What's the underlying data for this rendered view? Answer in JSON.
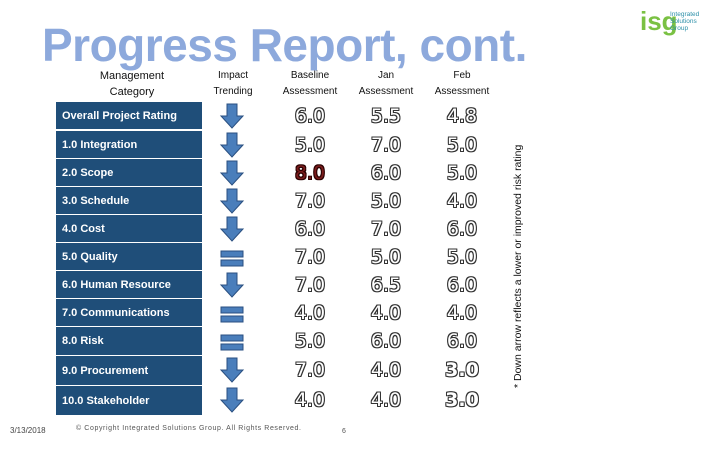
{
  "title": "Progress Report, cont.",
  "logo": {
    "mark": "isg",
    "lines": [
      "Integrated",
      "Solutions",
      "Group"
    ],
    "mark_color": "#7ac143",
    "text_color": "#2b8fa8"
  },
  "columns": {
    "management": "Management Category",
    "trending": "Impact Trending",
    "baseline": "Baseline Assessment",
    "jan": "Jan Assessment",
    "feb": "Feb Assessment"
  },
  "rows": [
    {
      "label": "Overall Project Rating",
      "trend": "down-arrow",
      "baseline": "6.0",
      "jan": "5.5",
      "feb": "4.8"
    },
    {
      "label": "1.0 Integration",
      "trend": "down-arrow",
      "baseline": "5.0",
      "jan": "7.0",
      "feb": "5.0"
    },
    {
      "label": "2.0 Scope",
      "trend": "down-arrow",
      "baseline": "8.0",
      "jan": "6.0",
      "feb": "5.0",
      "baseline_highlight": true
    },
    {
      "label": "3.0 Schedule",
      "trend": "down-arrow",
      "baseline": "7.0",
      "jan": "5.0",
      "feb": "4.0"
    },
    {
      "label": "4.0 Cost",
      "trend": "down-arrow",
      "baseline": "6.0",
      "jan": "7.0",
      "feb": "6.0"
    },
    {
      "label": "5.0 Quality",
      "trend": "equal-bars",
      "baseline": "7.0",
      "jan": "5.0",
      "feb": "5.0"
    },
    {
      "label": "6.0 Human Resource",
      "trend": "down-arrow",
      "baseline": "7.0",
      "jan": "6.5",
      "feb": "6.0"
    },
    {
      "label": "7.0 Communications",
      "trend": "equal-bars",
      "baseline": "4.0",
      "jan": "4.0",
      "feb": "4.0"
    },
    {
      "label": "8.0 Risk",
      "trend": "equal-bars",
      "baseline": "5.0",
      "jan": "6.0",
      "feb": "6.0"
    },
    {
      "label": "9.0 Procurement",
      "trend": "down-arrow",
      "baseline": "7.0",
      "jan": "4.0",
      "feb": "3.0"
    },
    {
      "label": "10.0 Stakeholder",
      "trend": "down-arrow",
      "baseline": "4.0",
      "jan": "4.0",
      "feb": "3.0"
    }
  ],
  "side_note": "* Down arrow reflects a lower or improved risk rating",
  "footer": {
    "date": "3/13/2018",
    "copyright": "© Copyright Integrated Solutions Group. All Rights Reserved.",
    "page": "6"
  },
  "colors": {
    "title": "#8da9dc",
    "row_bg": "#1f4e79",
    "arrow_fill": "#4a7ebb",
    "highlight": "#7a1c1c"
  }
}
